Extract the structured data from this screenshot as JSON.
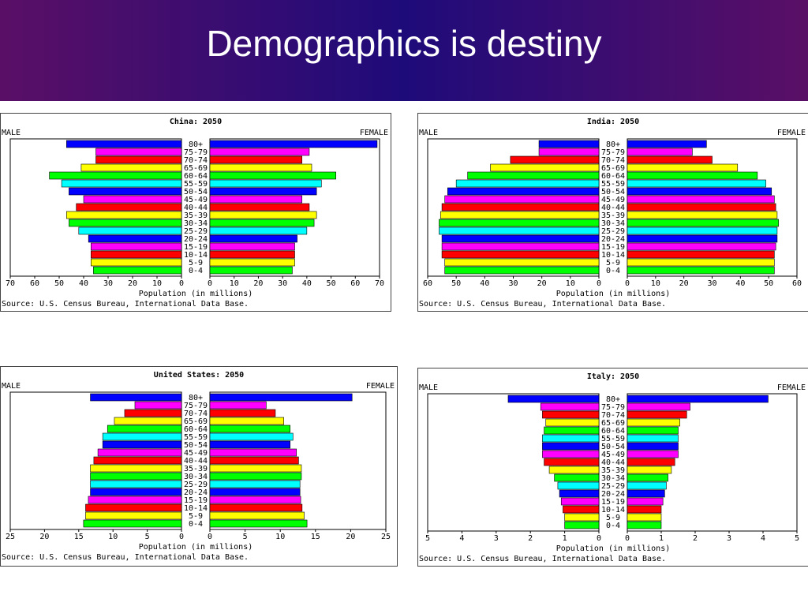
{
  "page": {
    "title": "Demographics is destiny"
  },
  "chart_data": [
    {
      "type": "bar",
      "title": "China: 2050",
      "male_label": "MALE",
      "female_label": "FEMALE",
      "xlabel": "Population (in millions)",
      "source": "Source: U.S. Census Bureau, International Data Base.",
      "xlim": [
        0,
        70
      ],
      "ticks": [
        70,
        60,
        50,
        40,
        30,
        20,
        10,
        0
      ],
      "categories": [
        "80+",
        "75-79",
        "70-74",
        "65-69",
        "60-64",
        "55-59",
        "50-54",
        "45-49",
        "40-44",
        "35-39",
        "30-34",
        "25-29",
        "20-24",
        "15-19",
        "10-14",
        "5-9",
        "0-4"
      ],
      "series": [
        {
          "name": "MALE",
          "values": [
            47,
            35,
            35,
            41,
            54,
            49,
            46,
            40,
            43,
            47,
            46,
            42,
            38,
            37,
            37,
            37,
            36
          ]
        },
        {
          "name": "FEMALE",
          "values": [
            69,
            41,
            38,
            42,
            52,
            46,
            44,
            38,
            41,
            44,
            43,
            40,
            36,
            35,
            35,
            35,
            34
          ]
        }
      ]
    },
    {
      "type": "bar",
      "title": "India: 2050",
      "male_label": "MALE",
      "female_label": "FEMALE",
      "xlabel": "Population (in millions)",
      "source": "Source: U.S. Census Bureau, International Data Base.",
      "xlim": [
        0,
        60
      ],
      "ticks": [
        60,
        50,
        40,
        30,
        20,
        10,
        0
      ],
      "categories": [
        "80+",
        "75-79",
        "70-74",
        "65-69",
        "60-64",
        "55-59",
        "50-54",
        "45-49",
        "40-44",
        "35-39",
        "30-34",
        "25-29",
        "20-24",
        "15-19",
        "10-14",
        "5-9",
        "0-4"
      ],
      "series": [
        {
          "name": "MALE",
          "values": [
            21,
            21,
            31,
            38,
            46,
            50,
            53,
            54,
            55,
            55.5,
            56,
            56,
            55,
            55,
            55,
            54,
            54
          ]
        },
        {
          "name": "FEMALE",
          "values": [
            28,
            23,
            30,
            39,
            46,
            49,
            51,
            52,
            52.5,
            53,
            53.5,
            53,
            53,
            52.5,
            52,
            52,
            52
          ]
        }
      ]
    },
    {
      "type": "bar",
      "title": "United States: 2050",
      "male_label": "MALE",
      "female_label": "FEMALE",
      "xlabel": "Population (in millions)",
      "source": "Source: U.S. Census Bureau, International Data Base.",
      "xlim": [
        0,
        25
      ],
      "ticks": [
        25,
        20,
        15,
        10,
        5,
        0
      ],
      "categories": [
        "80+",
        "75-79",
        "70-74",
        "65-69",
        "60-64",
        "55-59",
        "50-54",
        "45-49",
        "40-44",
        "35-39",
        "30-34",
        "25-29",
        "20-24",
        "15-19",
        "10-14",
        "5-9",
        "0-4"
      ],
      "series": [
        {
          "name": "MALE",
          "values": [
            13.3,
            6.8,
            8.3,
            9.8,
            10.8,
            11.5,
            11.5,
            12.2,
            12.8,
            13.3,
            13.3,
            13.3,
            13.3,
            13.6,
            14,
            14,
            14.3
          ]
        },
        {
          "name": "FEMALE",
          "values": [
            20.2,
            8,
            9.3,
            10.5,
            11.4,
            11.8,
            11.4,
            12.3,
            12.6,
            13,
            13,
            12.8,
            12.8,
            12.9,
            13.1,
            13.4,
            13.8
          ]
        }
      ]
    },
    {
      "type": "bar",
      "title": "Italy: 2050",
      "male_label": "MALE",
      "female_label": "FEMALE",
      "xlabel": "Population (in millions)",
      "source": "Source: U.S. Census Bureau, International Data Base.",
      "xlim": [
        0,
        5
      ],
      "ticks": [
        5,
        4,
        3,
        2,
        1,
        0
      ],
      "categories": [
        "80+",
        "75-79",
        "70-74",
        "65-69",
        "60-64",
        "55-59",
        "50-54",
        "45-49",
        "40-44",
        "35-39",
        "30-34",
        "25-29",
        "20-24",
        "15-19",
        "10-14",
        "5-9",
        "0-4"
      ],
      "series": [
        {
          "name": "MALE",
          "values": [
            2.65,
            1.7,
            1.65,
            1.55,
            1.6,
            1.65,
            1.65,
            1.65,
            1.6,
            1.45,
            1.3,
            1.2,
            1.15,
            1.1,
            1.05,
            1.0,
            1.0
          ]
        },
        {
          "name": "FEMALE",
          "values": [
            4.15,
            1.85,
            1.75,
            1.55,
            1.5,
            1.5,
            1.5,
            1.5,
            1.4,
            1.3,
            1.2,
            1.15,
            1.1,
            1.05,
            1.0,
            1.0,
            1.0
          ]
        }
      ]
    }
  ],
  "colors": [
    "#0000ff",
    "#ff00ff",
    "#ff0000",
    "#ffff00",
    "#00ff00",
    "#00ffff",
    "#0000ff",
    "#ff00ff",
    "#ff0000",
    "#ffff00",
    "#00ff00",
    "#00ffff",
    "#0000ff",
    "#ff00ff",
    "#ff0000",
    "#ffff00",
    "#00ff00"
  ]
}
